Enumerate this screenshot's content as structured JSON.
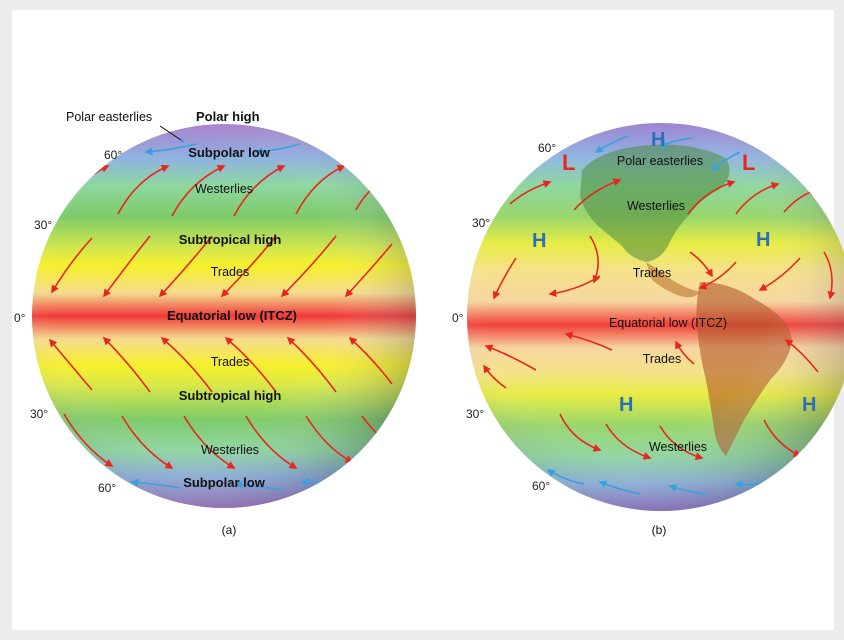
{
  "panel_a": {
    "caption": "(a)",
    "top_labels": {
      "polar_easterlies": "Polar easterlies",
      "polar_high": "Polar high"
    },
    "belts": {
      "subpolar_low_n": "Subpolar low",
      "westerlies_n": "Westerlies",
      "subtropical_high_n": "Subtropical high",
      "trades_n": "Trades",
      "equatorial_low": "Equatorial low (ITCZ)",
      "trades_s": "Trades",
      "subtropical_high_s": "Subtropical high",
      "westerlies_s": "Westerlies",
      "subpolar_low_s": "Subpolar low"
    },
    "latitudes": {
      "n60": "60°",
      "n30": "30°",
      "eq": "0°",
      "s30": "30°",
      "s60": "60°"
    }
  },
  "panel_b": {
    "caption": "(b)",
    "labels": {
      "polar_easterlies": "Polar easterlies",
      "westerlies_n": "Westerlies",
      "trades_n": "Trades",
      "equatorial_low": "Equatorial low (ITCZ)",
      "trades_s": "Trades",
      "westerlies_s": "Westerlies"
    },
    "pressure_marks": {
      "low": "L",
      "high": "H"
    },
    "latitudes": {
      "n60": "60°",
      "n30": "30°",
      "eq": "0°",
      "s30": "30°",
      "s60": "60°"
    }
  },
  "colors": {
    "polar": "#b08ad0",
    "subpolar": "#7fd0d8",
    "westerlies": "#84d06c",
    "subtropical": "#f2ef30",
    "trades": "#f3d88a",
    "equatorial": "#f03a3a",
    "red_arrow": "#e8261d",
    "blue_arrow": "#3aa0e0",
    "high_mark": "#2f6fb5",
    "low_mark": "#e8261d"
  }
}
